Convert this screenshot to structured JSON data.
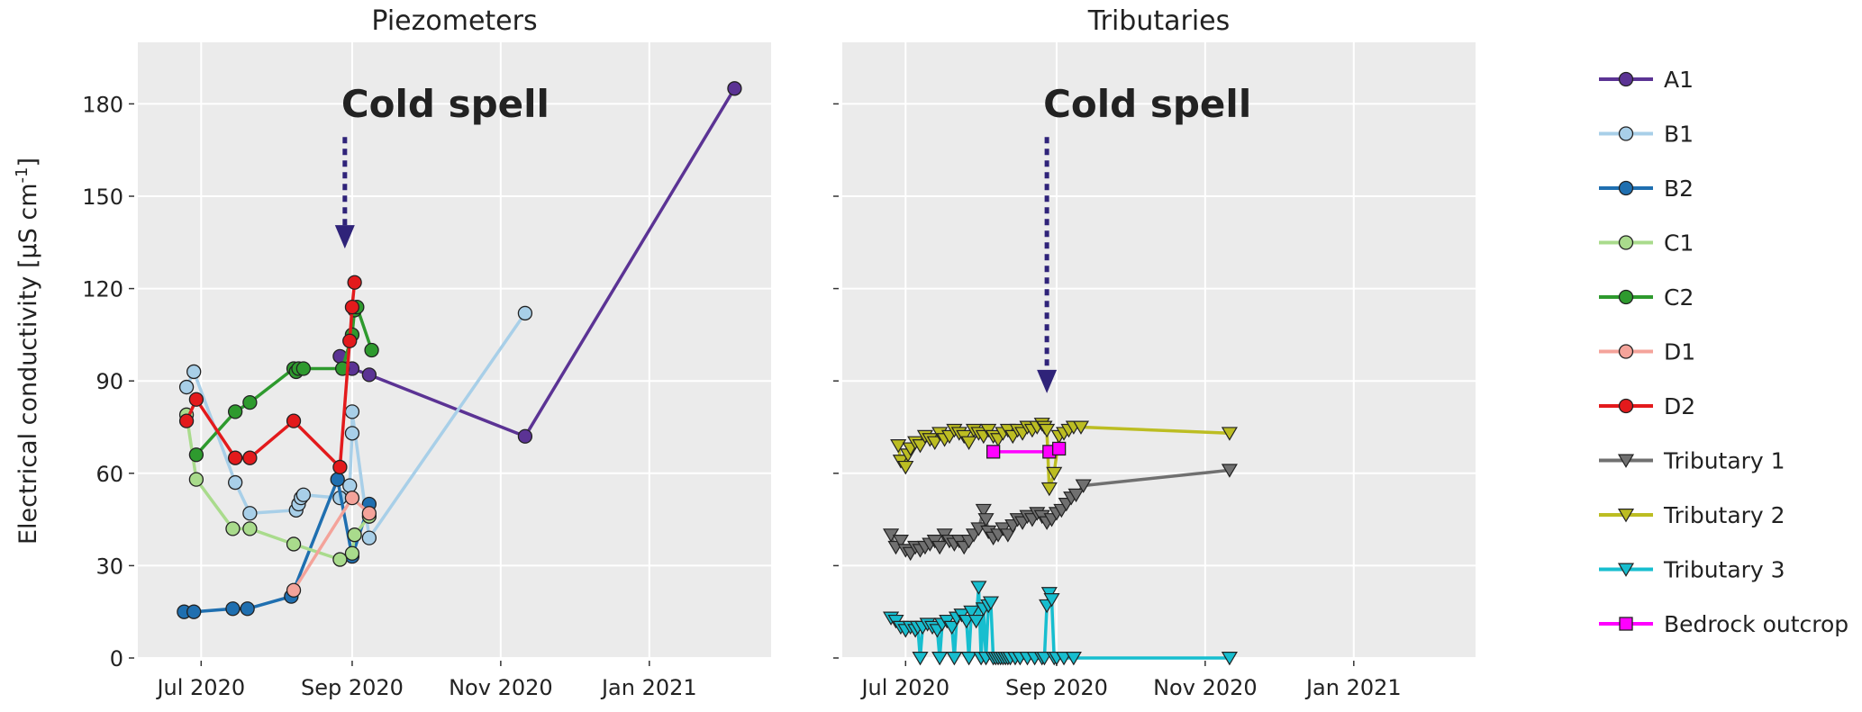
{
  "figure": {
    "ylabel": "Electrical conductivity [μS cm",
    "ylabel_sup": "-1",
    "ylabel_close": "]"
  },
  "chart_data": [
    {
      "type": "line",
      "title": "Piezometers",
      "xlabel": "",
      "ylabel": "Electrical conductivity [μS cm-1]",
      "x_type": "date",
      "xlim": [
        "2020-06-05",
        "2021-02-20"
      ],
      "ylim": [
        0,
        200
      ],
      "x_ticks": [
        "2020-07-01",
        "2020-09-01",
        "2020-11-01",
        "2021-01-01"
      ],
      "x_tick_labels": [
        "Jul 2020",
        "Sep 2020",
        "Nov 2020",
        "Jan 2021"
      ],
      "y_ticks": [
        0,
        30,
        60,
        90,
        120,
        150,
        180
      ],
      "grid": true,
      "annotation": {
        "text": "Cold spell",
        "x": "2020-08-29",
        "arrow_to_y": 133,
        "text_y": 178
      },
      "series": [
        {
          "name": "A1",
          "marker": "circle",
          "color": "#5b3394",
          "x": [
            "2020-08-27",
            "2020-09-01",
            "2020-09-08",
            "2020-11-11",
            "2021-02-05"
          ],
          "y": [
            98,
            94,
            92,
            72,
            185
          ]
        },
        {
          "name": "B1",
          "marker": "circle",
          "color": "#a8cfe8",
          "x": [
            "2020-06-25",
            "2020-06-28",
            "2020-07-15",
            "2020-07-21",
            "2020-08-09",
            "2020-08-10",
            "2020-08-11",
            "2020-08-12",
            "2020-08-27",
            "2020-08-31",
            "2020-09-01",
            "2020-09-01",
            "2020-09-08",
            "2020-11-11"
          ],
          "y": [
            88,
            93,
            57,
            47,
            48,
            50,
            52,
            53,
            52,
            56,
            73,
            80,
            39,
            112
          ]
        },
        {
          "name": "B2",
          "marker": "circle",
          "color": "#1f6fb0",
          "x": [
            "2020-06-24",
            "2020-06-28",
            "2020-07-14",
            "2020-07-20",
            "2020-08-07",
            "2020-08-26",
            "2020-09-01",
            "2020-09-08"
          ],
          "y": [
            15,
            15,
            16,
            16,
            20,
            58,
            33,
            50
          ]
        },
        {
          "name": "C1",
          "marker": "circle",
          "color": "#a9db8c",
          "x": [
            "2020-06-25",
            "2020-06-29",
            "2020-07-14",
            "2020-07-21",
            "2020-08-08",
            "2020-08-27",
            "2020-09-01",
            "2020-09-02",
            "2020-09-08"
          ],
          "y": [
            79,
            58,
            42,
            42,
            37,
            32,
            34,
            40,
            46
          ]
        },
        {
          "name": "C2",
          "marker": "circle",
          "color": "#2e9a2e",
          "x": [
            "2020-06-29",
            "2020-07-15",
            "2020-07-21",
            "2020-08-08",
            "2020-08-09",
            "2020-08-10",
            "2020-08-12",
            "2020-08-28",
            "2020-09-01",
            "2020-09-02",
            "2020-09-03",
            "2020-09-09"
          ],
          "y": [
            66,
            80,
            83,
            94,
            93,
            94,
            94,
            94,
            105,
            113,
            114,
            100
          ]
        },
        {
          "name": "D1",
          "marker": "circle",
          "color": "#f4a39a",
          "x": [
            "2020-08-08",
            "2020-09-01",
            "2020-09-08"
          ],
          "y": [
            22,
            52,
            47
          ]
        },
        {
          "name": "D2",
          "marker": "circle",
          "color": "#e31a1c",
          "x": [
            "2020-06-25",
            "2020-06-29",
            "2020-07-15",
            "2020-07-21",
            "2020-08-08",
            "2020-08-27",
            "2020-08-31",
            "2020-09-01",
            "2020-09-02"
          ],
          "y": [
            77,
            84,
            65,
            65,
            77,
            62,
            103,
            114,
            122
          ]
        }
      ]
    },
    {
      "type": "line",
      "title": "Tributaries",
      "xlabel": "",
      "ylabel": "",
      "x_type": "date",
      "xlim": [
        "2020-06-05",
        "2021-02-20"
      ],
      "ylim": [
        0,
        200
      ],
      "x_ticks": [
        "2020-07-01",
        "2020-09-01",
        "2020-11-01",
        "2021-01-01"
      ],
      "x_tick_labels": [
        "Jul 2020",
        "Sep 2020",
        "Nov 2020",
        "Jan 2021"
      ],
      "y_ticks": [
        0,
        30,
        60,
        90,
        120,
        150,
        180
      ],
      "grid": true,
      "annotation": {
        "text": "Cold spell",
        "x": "2020-08-28",
        "arrow_to_y": 86,
        "text_y": 178
      },
      "series": [
        {
          "name": "Tributary 1",
          "marker": "triangle-down",
          "color": "#707070",
          "x": [
            "2020-06-25",
            "2020-06-27",
            "2020-06-29",
            "2020-07-01",
            "2020-07-03",
            "2020-07-05",
            "2020-07-07",
            "2020-07-09",
            "2020-07-11",
            "2020-07-13",
            "2020-07-15",
            "2020-07-17",
            "2020-07-19",
            "2020-07-21",
            "2020-07-23",
            "2020-07-25",
            "2020-07-27",
            "2020-07-29",
            "2020-07-31",
            "2020-08-02",
            "2020-08-03",
            "2020-08-04",
            "2020-08-06",
            "2020-08-08",
            "2020-08-10",
            "2020-08-12",
            "2020-08-14",
            "2020-08-16",
            "2020-08-18",
            "2020-08-20",
            "2020-08-22",
            "2020-08-24",
            "2020-08-26",
            "2020-08-28",
            "2020-08-30",
            "2020-09-01",
            "2020-09-03",
            "2020-09-05",
            "2020-09-07",
            "2020-09-09",
            "2020-09-12",
            "2020-11-11"
          ],
          "y": [
            40,
            36,
            38,
            35,
            34,
            36,
            35,
            36,
            37,
            38,
            36,
            40,
            38,
            37,
            38,
            36,
            38,
            40,
            42,
            48,
            45,
            41,
            39,
            40,
            42,
            40,
            43,
            45,
            44,
            46,
            45,
            47,
            46,
            44,
            45,
            47,
            48,
            50,
            52,
            53,
            56,
            61
          ]
        },
        {
          "name": "Tributary 2",
          "marker": "triangle-down",
          "color": "#bcbd22",
          "x": [
            "2020-06-28",
            "2020-06-29",
            "2020-07-01",
            "2020-07-02",
            "2020-07-03",
            "2020-07-05",
            "2020-07-07",
            "2020-07-09",
            "2020-07-11",
            "2020-07-13",
            "2020-07-15",
            "2020-07-17",
            "2020-07-19",
            "2020-07-21",
            "2020-07-23",
            "2020-07-25",
            "2020-07-27",
            "2020-07-29",
            "2020-07-31",
            "2020-08-02",
            "2020-08-04",
            "2020-08-06",
            "2020-08-08",
            "2020-08-10",
            "2020-08-12",
            "2020-08-14",
            "2020-08-16",
            "2020-08-18",
            "2020-08-20",
            "2020-08-22",
            "2020-08-24",
            "2020-08-26",
            "2020-08-27",
            "2020-08-28",
            "2020-08-29",
            "2020-08-31",
            "2020-09-02",
            "2020-09-04",
            "2020-09-06",
            "2020-09-08",
            "2020-09-11",
            "2020-11-11"
          ],
          "y": [
            69,
            64,
            62,
            66,
            68,
            70,
            69,
            72,
            71,
            70,
            73,
            71,
            72,
            74,
            73,
            72,
            70,
            74,
            73,
            72,
            74,
            72,
            71,
            73,
            74,
            72,
            74,
            73,
            75,
            74,
            75,
            76,
            75,
            74,
            55,
            60,
            72,
            73,
            74,
            75,
            75,
            73
          ]
        },
        {
          "name": "Tributary 3",
          "marker": "triangle-down",
          "color": "#17becf",
          "x": [
            "2020-06-25",
            "2020-06-27",
            "2020-06-29",
            "2020-07-01",
            "2020-07-03",
            "2020-07-05",
            "2020-07-06",
            "2020-07-07",
            "2020-07-08",
            "2020-07-10",
            "2020-07-12",
            "2020-07-14",
            "2020-07-15",
            "2020-07-16",
            "2020-07-18",
            "2020-07-20",
            "2020-07-21",
            "2020-07-22",
            "2020-07-24",
            "2020-07-26",
            "2020-07-27",
            "2020-07-28",
            "2020-07-30",
            "2020-07-31",
            "2020-08-01",
            "2020-08-02",
            "2020-08-03",
            "2020-08-04",
            "2020-08-05",
            "2020-08-06",
            "2020-08-07",
            "2020-08-08",
            "2020-08-09",
            "2020-08-10",
            "2020-08-11",
            "2020-08-12",
            "2020-08-13",
            "2020-08-15",
            "2020-08-17",
            "2020-08-20",
            "2020-08-23",
            "2020-08-26",
            "2020-08-27",
            "2020-08-28",
            "2020-08-29",
            "2020-08-30",
            "2020-08-31",
            "2020-09-01",
            "2020-09-04",
            "2020-09-08",
            "2020-11-11"
          ],
          "y": [
            13,
            12,
            10,
            9,
            10,
            9,
            10,
            0,
            10,
            11,
            10,
            9,
            0,
            11,
            12,
            10,
            0,
            13,
            14,
            12,
            0,
            15,
            12,
            23,
            0,
            16,
            0,
            17,
            18,
            0,
            0,
            0,
            0,
            0,
            0,
            0,
            0,
            0,
            0,
            0,
            0,
            0,
            0,
            17,
            21,
            19,
            0,
            0,
            0,
            0,
            0
          ]
        },
        {
          "name": "Bedrock outcrop",
          "marker": "square",
          "color": "#ff00ff",
          "x": [
            "2020-08-06",
            "2020-08-29",
            "2020-09-02"
          ],
          "y": [
            67,
            67,
            68
          ]
        }
      ]
    }
  ],
  "legend": {
    "placement": "right",
    "items": [
      {
        "label": "A1",
        "marker": "circle",
        "color": "#5b3394"
      },
      {
        "label": "B1",
        "marker": "circle",
        "color": "#a8cfe8"
      },
      {
        "label": "B2",
        "marker": "circle",
        "color": "#1f6fb0"
      },
      {
        "label": "C1",
        "marker": "circle",
        "color": "#a9db8c"
      },
      {
        "label": "C2",
        "marker": "circle",
        "color": "#2e9a2e"
      },
      {
        "label": "D1",
        "marker": "circle",
        "color": "#f4a39a"
      },
      {
        "label": "D2",
        "marker": "circle",
        "color": "#e31a1c"
      },
      {
        "label": "Tributary 1",
        "marker": "triangle-down",
        "color": "#707070"
      },
      {
        "label": "Tributary 2",
        "marker": "triangle-down",
        "color": "#bcbd22"
      },
      {
        "label": "Tributary 3",
        "marker": "triangle-down",
        "color": "#17becf"
      },
      {
        "label": "Bedrock outcrop",
        "marker": "square",
        "color": "#ff00ff"
      }
    ]
  },
  "colors": {
    "panel_bg": "#ebebeb",
    "grid": "#ffffff",
    "annotation": "#2f2379"
  }
}
